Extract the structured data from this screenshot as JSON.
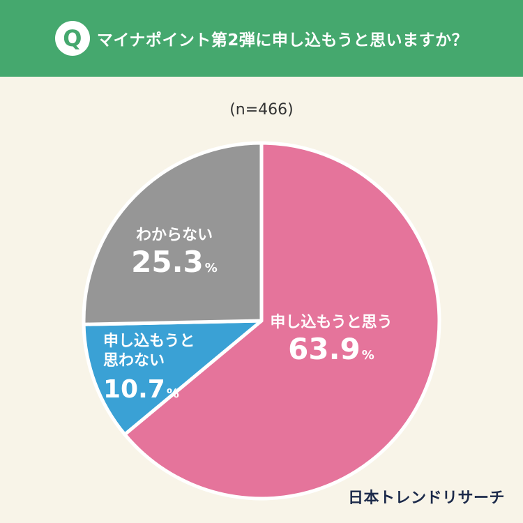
{
  "header": {
    "badge": "Q",
    "question": "マイナポイント第2弾に申し込もうと思いますか？"
  },
  "sample_size": "(n=466)",
  "brand": "日本トレンドリサーチ",
  "colors": {
    "header_bg": "#45a86e",
    "background": "#f8f4e8",
    "slice_apply": "#e5749b",
    "slice_not_apply": "#3aa1d5",
    "slice_unknown": "#969696"
  },
  "chart_data": {
    "type": "pie",
    "title": "マイナポイント第2弾に申し込もうと思いますか？",
    "subtitle": "(n=466)",
    "unit": "%",
    "slices": [
      {
        "label": "申し込もうと思う",
        "value": 63.9,
        "display": "63.9",
        "color": "#e5749b"
      },
      {
        "label": "申し込もうと思わない",
        "display_lines": [
          "申し込もうと",
          "思わない"
        ],
        "value": 10.7,
        "display": "10.7",
        "color": "#3aa1d5"
      },
      {
        "label": "わからない",
        "value": 25.3,
        "display": "25.3",
        "color": "#969696"
      }
    ]
  }
}
